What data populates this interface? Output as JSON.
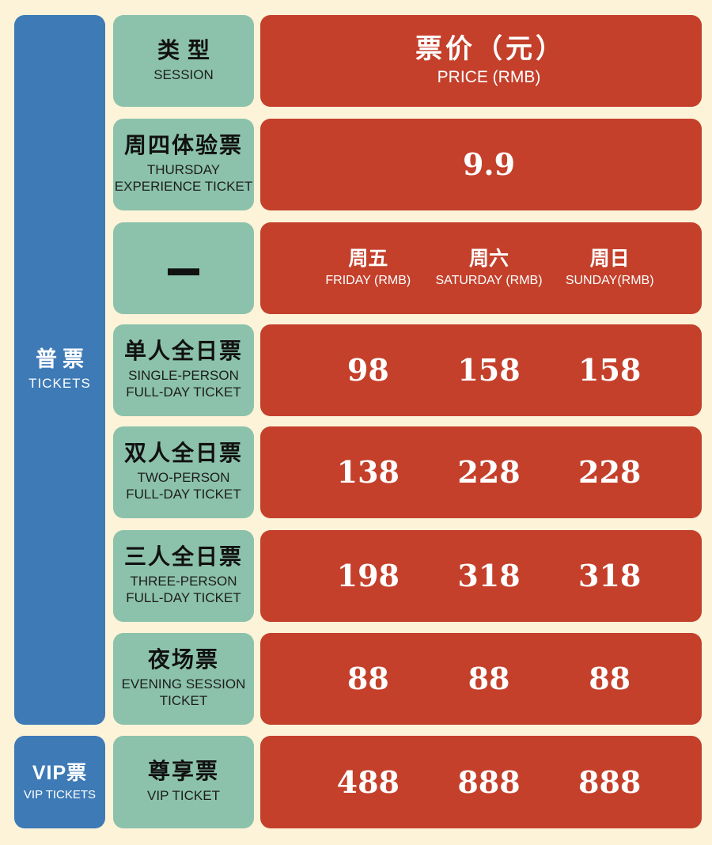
{
  "colors": {
    "background": "#fcf3d8",
    "blue": "#3d7ab6",
    "green": "#8cc2ac",
    "red": "#c4402b",
    "text_dark": "#141414",
    "text_light": "#ffffff"
  },
  "left_column": {
    "tickets": {
      "zh": "普票",
      "en": "TICKETS"
    },
    "vip": {
      "zh": "VIP票",
      "en": "VIP TICKETS"
    }
  },
  "type_header": {
    "zh": "类型",
    "en": "SESSION"
  },
  "price_header": {
    "zh": "票价（元）",
    "en": "PRICE (RMB)"
  },
  "dash": "—",
  "days": [
    {
      "zh": "周五",
      "en": "FRIDAY (RMB)"
    },
    {
      "zh": "周六",
      "en": "SATURDAY (RMB)"
    },
    {
      "zh": "周日",
      "en": "SUNDAY(RMB)"
    }
  ],
  "rows": [
    {
      "zh": "周四体验票",
      "en1": "THURSDAY",
      "en2": "EXPERIENCE TICKET",
      "single_price": "9.9"
    },
    {
      "zh": "单人全日票",
      "en1": "SINGLE-PERSON",
      "en2": "FULL-DAY TICKET",
      "p1": "98",
      "p2": "158",
      "p3": "158"
    },
    {
      "zh": "双人全日票",
      "en1": "TWO-PERSON",
      "en2": "FULL-DAY TICKET",
      "p1": "138",
      "p2": "228",
      "p3": "228"
    },
    {
      "zh": "三人全日票",
      "en1": "THREE-PERSON",
      "en2": "FULL-DAY TICKET",
      "p1": "198",
      "p2": "318",
      "p3": "318"
    },
    {
      "zh": "夜场票",
      "en1": "EVENING SESSION",
      "en2": "TICKET",
      "p1": "88",
      "p2": "88",
      "p3": "88"
    },
    {
      "zh": "尊享票",
      "en1": "VIP TICKET",
      "en2": "",
      "p1": "488",
      "p2": "888",
      "p3": "888"
    }
  ],
  "chart_data": {
    "type": "table",
    "title": "票价（元） PRICE (RMB)",
    "columns": [
      "类型 SESSION",
      "周五 FRIDAY (RMB)",
      "周六 SATURDAY (RMB)",
      "周日 SUNDAY(RMB)"
    ],
    "row_groups": [
      "普票 TICKETS",
      "VIP票 VIP TICKETS"
    ],
    "rows": [
      {
        "group": "普票 TICKETS",
        "session": "周四体验票 THURSDAY EXPERIENCE TICKET",
        "friday": 9.9,
        "saturday": 9.9,
        "sunday": 9.9,
        "note": "single price 9.9 spans all days"
      },
      {
        "group": "普票 TICKETS",
        "session": "单人全日票 SINGLE-PERSON FULL-DAY TICKET",
        "friday": 98,
        "saturday": 158,
        "sunday": 158
      },
      {
        "group": "普票 TICKETS",
        "session": "双人全日票 TWO-PERSON FULL-DAY TICKET",
        "friday": 138,
        "saturday": 228,
        "sunday": 228
      },
      {
        "group": "普票 TICKETS",
        "session": "三人全日票 THREE-PERSON FULL-DAY TICKET",
        "friday": 198,
        "saturday": 318,
        "sunday": 318
      },
      {
        "group": "普票 TICKETS",
        "session": "夜场票 EVENING SESSION TICKET",
        "friday": 88,
        "saturday": 88,
        "sunday": 88
      },
      {
        "group": "VIP票 VIP TICKETS",
        "session": "尊享票 VIP TICKET",
        "friday": 488,
        "saturday": 888,
        "sunday": 888
      }
    ]
  }
}
